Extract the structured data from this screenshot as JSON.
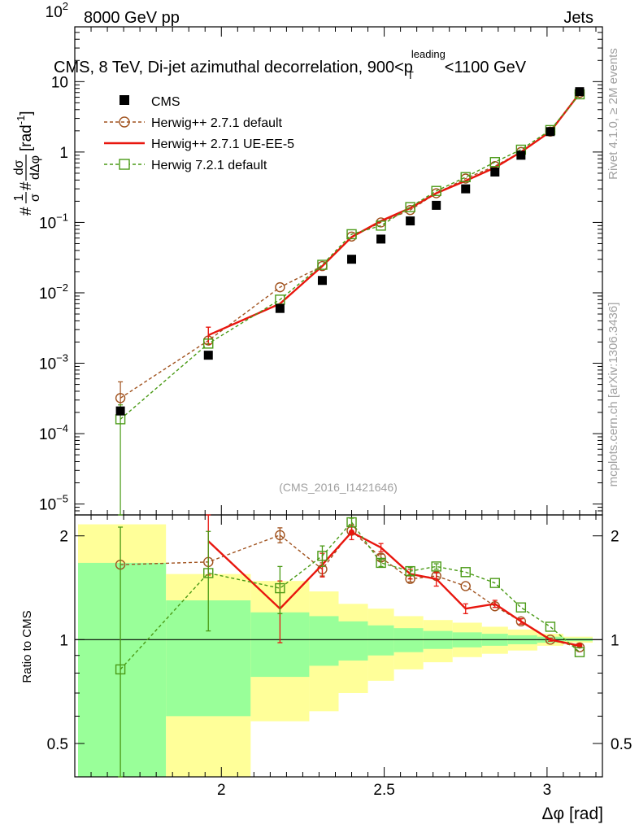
{
  "header": {
    "energy_label": "8000 GeV pp",
    "category_label": "Jets",
    "plot_title_pre": "CMS, 8 TeV, Di-jet azimuthal decorrelation, 900<p",
    "plot_title_sup": "leading",
    "plot_title_sub": "T",
    "plot_title_post": "<1100 GeV",
    "side_label_top": "Rivet 4.1.0, ≥ 2M events",
    "side_label_bottom": "mcplots.cern.ch [arXiv:1306.3436]",
    "analysis_id": "(CMS_2016_I1421646)"
  },
  "colors": {
    "cms": "#000000",
    "herwig_default": "#a0521e",
    "herwig_ueee5": "#e8160e",
    "herwig72": "#4a9a16",
    "band_inner": "#99ff99",
    "band_outer": "#ffff99"
  },
  "chart_data": {
    "type": "scatter",
    "x": [
      1.69,
      1.96,
      2.18,
      2.31,
      2.4,
      2.49,
      2.58,
      2.66,
      2.75,
      2.84,
      2.92,
      3.01,
      3.1
    ],
    "xlim": [
      1.55,
      3.17
    ],
    "xticks": [
      2,
      2.5,
      3
    ],
    "xtick_labels": [
      "2",
      "2.5",
      "3"
    ],
    "xlabel": "Δφ [rad]",
    "main": {
      "ylabel_pre": "#",
      "ylabel_frac1_num": "1",
      "ylabel_frac1_den": "σ",
      "ylabel_mid": "#",
      "ylabel_frac2_num": "dσ",
      "ylabel_frac2_den": "dΔφ",
      "ylabel_unit": "[rad",
      "ylabel_unit_sup": "-1",
      "ylabel_unit_end": "]",
      "yscale": "log",
      "ylim": [
        7e-06,
        60
      ],
      "ytick_labels": [
        {
          "value": 1e-05,
          "base": "10",
          "exp": "−5"
        },
        {
          "value": 0.0001,
          "base": "10",
          "exp": "−4"
        },
        {
          "value": 0.001,
          "base": "10",
          "exp": "−3"
        },
        {
          "value": 0.01,
          "base": "10",
          "exp": "−2"
        },
        {
          "value": 0.1,
          "base": "10",
          "exp": "−1"
        },
        {
          "value": 1,
          "base": "1",
          "exp": ""
        },
        {
          "value": 10,
          "base": "10",
          "exp": ""
        },
        {
          "value": 100,
          "base": "10",
          "exp": "2"
        }
      ]
    },
    "ratio": {
      "ylabel": "Ratio to CMS",
      "ylim": [
        0.4,
        2.3
      ],
      "ytick_labels": [
        {
          "value": 0.5,
          "label": "0.5"
        },
        {
          "value": 1,
          "label": "1"
        },
        {
          "value": 2,
          "label": "2"
        }
      ],
      "bin_edges": [
        1.56,
        1.83,
        2.09,
        2.27,
        2.36,
        2.45,
        2.53,
        2.62,
        2.71,
        2.8,
        2.88,
        2.97,
        3.05,
        3.14
      ],
      "band_inner": [
        [
          0.4,
          1.67
        ],
        [
          0.6,
          1.3
        ],
        [
          0.78,
          1.2
        ],
        [
          0.84,
          1.17
        ],
        [
          0.87,
          1.13
        ],
        [
          0.9,
          1.1
        ],
        [
          0.92,
          1.08
        ],
        [
          0.94,
          1.06
        ],
        [
          0.95,
          1.05
        ],
        [
          0.96,
          1.04
        ],
        [
          0.97,
          1.03
        ],
        [
          0.98,
          1.02
        ],
        [
          0.99,
          1.01
        ]
      ],
      "band_outer": [
        [
          0.4,
          2.16
        ],
        [
          0.4,
          1.55
        ],
        [
          0.58,
          1.48
        ],
        [
          0.62,
          1.38
        ],
        [
          0.7,
          1.27
        ],
        [
          0.76,
          1.23
        ],
        [
          0.82,
          1.17
        ],
        [
          0.86,
          1.14
        ],
        [
          0.89,
          1.12
        ],
        [
          0.91,
          1.09
        ],
        [
          0.93,
          1.07
        ],
        [
          0.96,
          1.04
        ],
        [
          0.98,
          1.02
        ]
      ]
    },
    "series": [
      {
        "name": "CMS",
        "key": "cms",
        "values": [
          0.00021,
          0.0013,
          0.006,
          0.015,
          0.03,
          0.058,
          0.105,
          0.175,
          0.3,
          0.52,
          0.9,
          1.95,
          7.2
        ],
        "ratio": [
          1,
          1,
          1,
          1,
          1,
          1,
          1,
          1,
          1,
          1,
          1,
          1,
          1
        ]
      },
      {
        "name": "Herwig++ 2.7.1 default",
        "key": "herwig_default",
        "values": [
          0.00032,
          0.0021,
          0.012,
          0.024,
          0.063,
          0.1,
          0.15,
          0.26,
          0.42,
          0.63,
          1.0,
          1.95,
          6.9
        ],
        "ratio": [
          1.65,
          1.68,
          2.01,
          1.6,
          2.07,
          1.73,
          1.5,
          1.53,
          1.43,
          1.25,
          1.13,
          1.0,
          0.95
        ],
        "ratio_err": [
          null,
          null,
          0.1,
          0.07,
          0.05,
          0.04,
          0.03,
          0.03,
          null,
          null,
          0.02,
          null,
          null
        ]
      },
      {
        "name": "Herwig++ 2.7.1 UE-EE-5",
        "key": "herwig_ueee5",
        "values": [
          null,
          0.0025,
          0.007,
          0.024,
          0.062,
          0.105,
          0.16,
          0.26,
          0.39,
          0.6,
          1.0,
          1.95,
          6.8
        ],
        "ratio": [
          null,
          1.93,
          1.23,
          1.65,
          2.05,
          1.85,
          1.55,
          1.5,
          1.23,
          1.27,
          1.13,
          1.0,
          0.96
        ],
        "ratio_err": [
          null,
          0.39,
          0.25,
          0.13,
          0.1,
          0.05,
          0.05,
          0.07,
          0.04,
          0.03,
          0.02,
          0.01,
          0.01
        ]
      },
      {
        "name": "Herwig 7.2.1 default",
        "key": "herwig72",
        "values": [
          0.00016,
          0.0019,
          0.008,
          0.025,
          0.068,
          0.09,
          0.165,
          0.28,
          0.44,
          0.72,
          1.08,
          2.05,
          6.6
        ],
        "ratio": [
          0.82,
          1.56,
          1.41,
          1.75,
          2.19,
          1.67,
          1.58,
          1.63,
          1.57,
          1.46,
          1.24,
          1.09,
          0.92
        ],
        "ratio_err": [
          1.3,
          0.5,
          0.22,
          0.12,
          0.06,
          0.04,
          0.04,
          0.03,
          null,
          null,
          null,
          null,
          null
        ]
      }
    ]
  }
}
